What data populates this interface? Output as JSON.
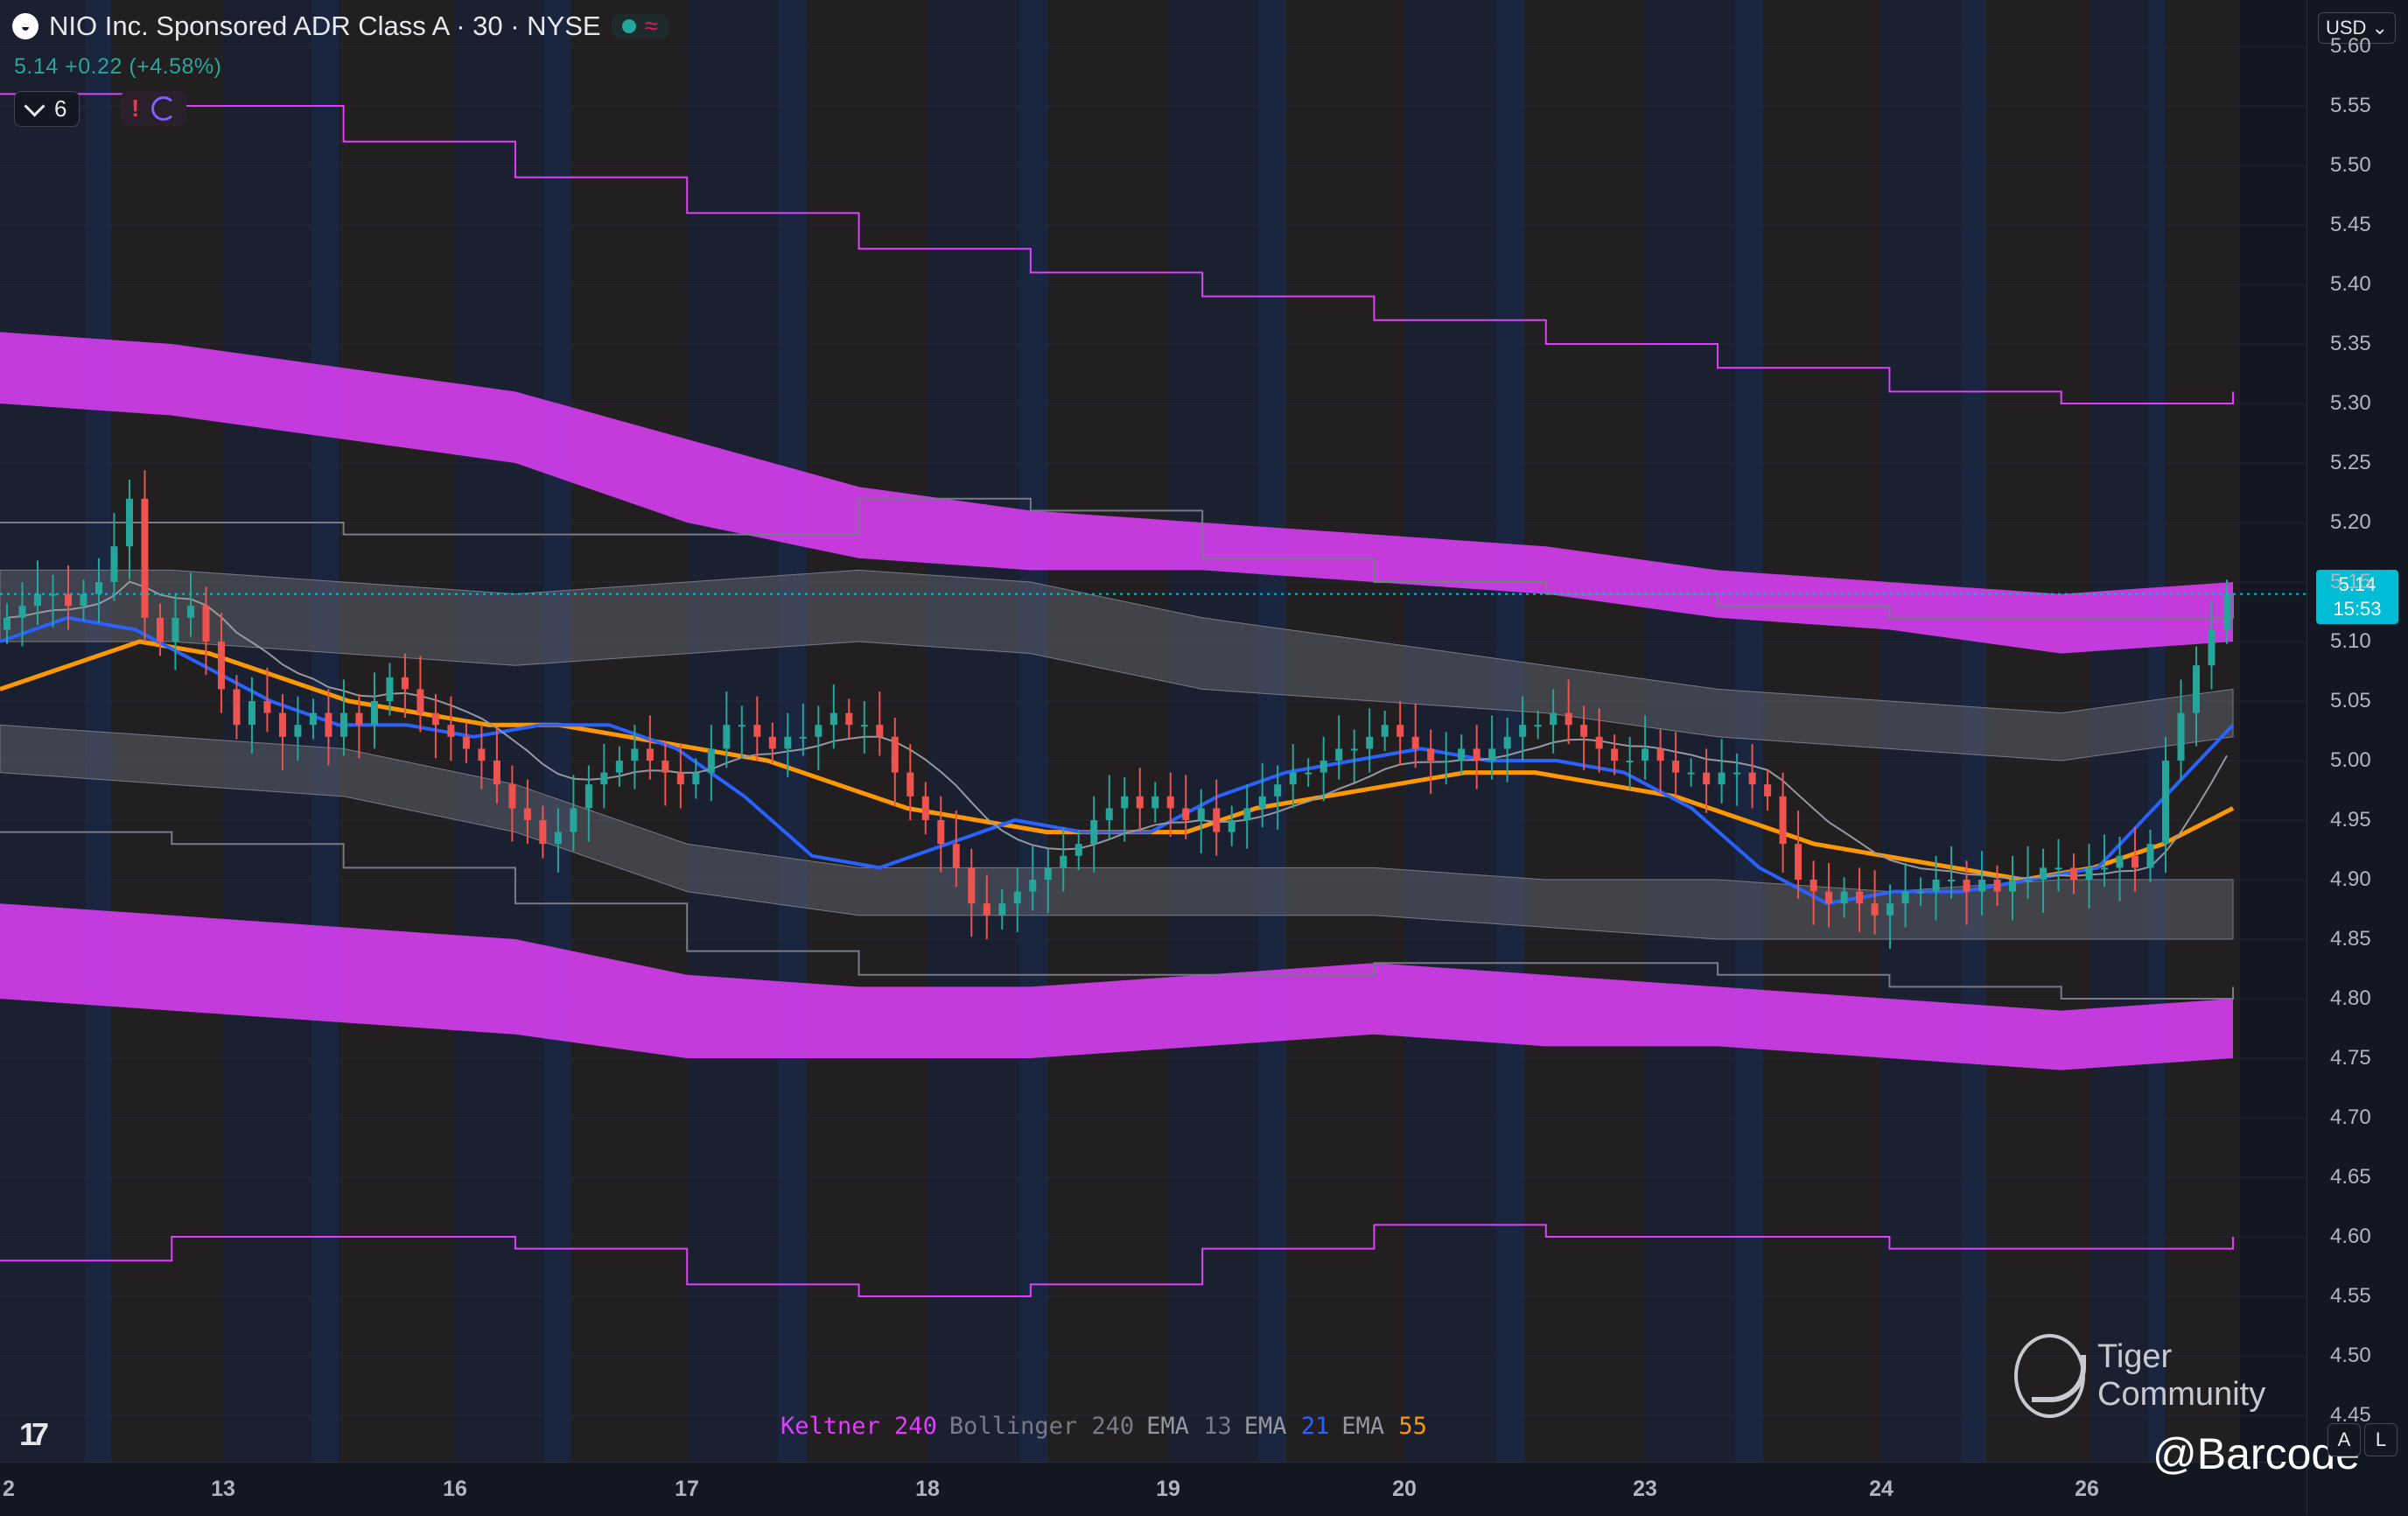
{
  "header": {
    "logo_glyph": "◒",
    "symbol_title": "NIO Inc. Sponsored ADR Class A · 30 · NYSE",
    "wave_icon": "≈",
    "price_line": "5.14 +0.22 (+4.58%)",
    "indicator_count": "6",
    "alert_glyph": "!"
  },
  "price_axis": {
    "currency": "USD ⌄",
    "ticks": [
      "5.60",
      "5.55",
      "5.50",
      "5.45",
      "5.40",
      "5.35",
      "5.30",
      "5.25",
      "5.20",
      "5.15",
      "5.10",
      "5.05",
      "5.00",
      "4.95",
      "4.90",
      "4.85",
      "4.80",
      "4.75",
      "4.70",
      "4.65",
      "4.60",
      "4.55",
      "4.50",
      "4.45"
    ],
    "last_price": "5.14",
    "countdown": "15:53",
    "auto_label": "A",
    "log_label": "L"
  },
  "time_axis": {
    "ticks": [
      "2",
      "13",
      "16",
      "17",
      "18",
      "19",
      "20",
      "23",
      "24",
      "26"
    ]
  },
  "legend": [
    {
      "name": "Keltner",
      "value": "240",
      "name_color": "#e040fb",
      "value_color": "#e040fb"
    },
    {
      "name": "Bollinger",
      "value": "240",
      "name_color": "#787b86",
      "value_color": "#787b86"
    },
    {
      "name": "EMA",
      "value": "13",
      "name_color": "#9598a1",
      "value_color": "#787b86"
    },
    {
      "name": "EMA",
      "value": "21",
      "name_color": "#9598a1",
      "value_color": "#2962ff"
    },
    {
      "name": "EMA",
      "value": "55",
      "name_color": "#9598a1",
      "value_color": "#ff9800"
    }
  ],
  "tv_logo": "17",
  "watermark": {
    "text": "Tiger Community",
    "handle": "@Barcode"
  },
  "colors": {
    "up": "#26a69a",
    "down": "#ef5350",
    "keltner": "#e040fb",
    "bollinger": "#787b86",
    "ema13": "#9598a1",
    "ema21": "#2962ff",
    "ema55": "#ff9800",
    "last_price": "#00bcd4"
  },
  "chart_data": {
    "type": "candlestick",
    "symbol": "NIO",
    "interval": "30",
    "ylim": [
      4.42,
      5.62
    ],
    "x_ticks": [
      "2",
      "13",
      "16",
      "17",
      "18",
      "19",
      "20",
      "23",
      "24",
      "26"
    ],
    "last": 5.14,
    "change": 0.22,
    "change_pct": 4.58,
    "close_series": [
      5.12,
      5.13,
      5.14,
      5.14,
      5.13,
      5.14,
      5.15,
      5.18,
      5.22,
      5.12,
      5.1,
      5.12,
      5.13,
      5.1,
      5.06,
      5.03,
      5.05,
      5.04,
      5.02,
      5.03,
      5.04,
      5.02,
      5.04,
      5.03,
      5.05,
      5.07,
      5.06,
      5.04,
      5.03,
      5.02,
      5.01,
      5.0,
      4.98,
      4.96,
      4.95,
      4.93,
      4.94,
      4.96,
      4.98,
      4.99,
      5.0,
      5.01,
      5.0,
      4.99,
      4.98,
      4.99,
      5.01,
      5.03,
      5.03,
      5.02,
      5.01,
      5.02,
      5.02,
      5.03,
      5.04,
      5.03,
      5.03,
      5.02,
      4.99,
      4.97,
      4.95,
      4.93,
      4.91,
      4.88,
      4.87,
      4.88,
      4.89,
      4.9,
      4.91,
      4.92,
      4.93,
      4.95,
      4.96,
      4.97,
      4.96,
      4.97,
      4.96,
      4.95,
      4.96,
      4.94,
      4.95,
      4.96,
      4.97,
      4.98,
      4.99,
      4.99,
      5.0,
      5.01,
      5.01,
      5.02,
      5.03,
      5.02,
      5.01,
      5.0,
      5.0,
      5.01,
      5.0,
      5.01,
      5.02,
      5.03,
      5.03,
      5.04,
      5.03,
      5.02,
      5.01,
      5.0,
      5.0,
      5.01,
      5.0,
      4.99,
      4.99,
      4.98,
      4.99,
      4.99,
      4.98,
      4.97,
      4.93,
      4.9,
      4.89,
      4.88,
      4.89,
      4.88,
      4.87,
      4.88,
      4.89,
      4.89,
      4.9,
      4.9,
      4.89,
      4.9,
      4.89,
      4.9,
      4.9,
      4.91,
      4.91,
      4.9,
      4.91,
      4.91,
      4.92,
      4.91,
      4.93,
      5.0,
      5.04,
      5.08,
      5.11,
      5.14
    ],
    "keltner": {
      "outer_upper": [
        5.56,
        5.55,
        5.52,
        5.49,
        5.46,
        5.43,
        5.41,
        5.39,
        5.37,
        5.35,
        5.33,
        5.31,
        5.3,
        5.31
      ],
      "band_upper_top": [
        5.36,
        5.35,
        5.33,
        5.31,
        5.27,
        5.23,
        5.21,
        5.2,
        5.19,
        5.18,
        5.16,
        5.15,
        5.14,
        5.15
      ],
      "band_upper_bottom": [
        5.3,
        5.29,
        5.27,
        5.25,
        5.2,
        5.17,
        5.16,
        5.16,
        5.15,
        5.14,
        5.12,
        5.11,
        5.09,
        5.1
      ],
      "band_lower_top": [
        4.88,
        4.87,
        4.86,
        4.85,
        4.82,
        4.81,
        4.81,
        4.82,
        4.83,
        4.82,
        4.81,
        4.8,
        4.79,
        4.8
      ],
      "band_lower_bottom": [
        4.8,
        4.79,
        4.78,
        4.77,
        4.75,
        4.75,
        4.75,
        4.76,
        4.77,
        4.76,
        4.76,
        4.75,
        4.74,
        4.75
      ],
      "outer_lower": [
        4.58,
        4.6,
        4.6,
        4.59,
        4.56,
        4.55,
        4.56,
        4.59,
        4.61,
        4.6,
        4.6,
        4.59,
        4.59,
        4.6
      ]
    },
    "bollinger": {
      "upper_outer": [
        5.2,
        5.2,
        5.19,
        5.19,
        5.19,
        5.22,
        5.21,
        5.17,
        5.15,
        5.14,
        5.13,
        5.12,
        5.12,
        5.14
      ],
      "upper_top": [
        5.16,
        5.16,
        5.15,
        5.14,
        5.15,
        5.16,
        5.15,
        5.12,
        5.1,
        5.08,
        5.06,
        5.05,
        5.04,
        5.06
      ],
      "upper_bottom": [
        5.1,
        5.1,
        5.09,
        5.08,
        5.09,
        5.1,
        5.09,
        5.06,
        5.05,
        5.04,
        5.02,
        5.01,
        5.0,
        5.02
      ],
      "lower_top": [
        5.03,
        5.02,
        5.01,
        4.98,
        4.93,
        4.91,
        4.91,
        4.91,
        4.91,
        4.9,
        4.9,
        4.89,
        4.9,
        4.9
      ],
      "lower_bottom": [
        4.99,
        4.98,
        4.97,
        4.94,
        4.89,
        4.87,
        4.87,
        4.87,
        4.87,
        4.86,
        4.85,
        4.85,
        4.85,
        4.85
      ],
      "lower_outer": [
        4.94,
        4.93,
        4.91,
        4.88,
        4.84,
        4.82,
        4.82,
        4.82,
        4.83,
        4.83,
        4.82,
        4.81,
        4.8,
        4.81
      ]
    },
    "ema55": [
      5.06,
      5.08,
      5.1,
      5.09,
      5.07,
      5.05,
      5.04,
      5.03,
      5.03,
      5.02,
      5.01,
      5.0,
      4.98,
      4.96,
      4.95,
      4.94,
      4.94,
      4.94,
      4.96,
      4.97,
      4.98,
      4.99,
      4.99,
      4.98,
      4.97,
      4.95,
      4.93,
      4.92,
      4.91,
      4.9,
      4.91,
      4.93,
      4.96
    ],
    "ema21": [
      5.1,
      5.12,
      5.11,
      5.08,
      5.05,
      5.03,
      5.03,
      5.02,
      5.03,
      5.03,
      5.01,
      4.97,
      4.92,
      4.91,
      4.93,
      4.95,
      4.94,
      4.94,
      4.97,
      4.99,
      5.0,
      5.01,
      5.0,
      5.0,
      4.99,
      4.96,
      4.91,
      4.88,
      4.89,
      4.89,
      4.9,
      4.91,
      4.97,
      5.03
    ],
    "volume_note": ""
  }
}
